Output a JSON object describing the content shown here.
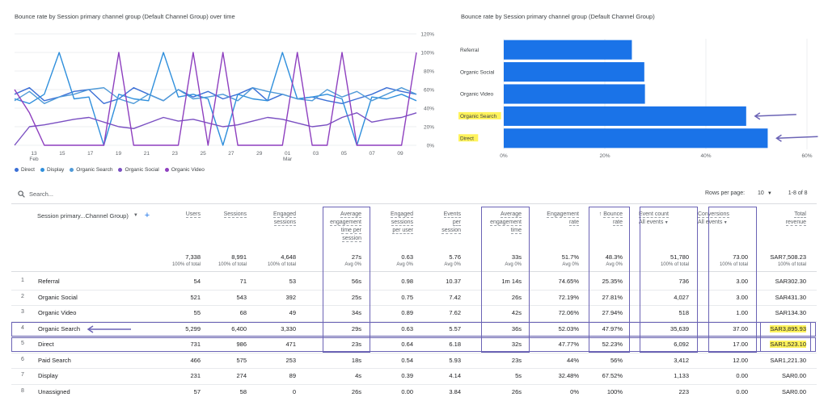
{
  "line_chart": {
    "title": "Bounce rate by Session primary channel group (Default Channel Group) over time",
    "chart_data": {
      "type": "line",
      "y_ticks": [
        "120%",
        "100%",
        "80%",
        "60%",
        "40%",
        "20%",
        "0%"
      ],
      "ylim": [
        0,
        120
      ],
      "x_ticks": [
        "13",
        "15",
        "17",
        "19",
        "21",
        "23",
        "25",
        "27",
        "29",
        "01",
        "03",
        "05",
        "07",
        "09"
      ],
      "x_tick_sub": {
        "13": "Feb",
        "01": "Mar"
      },
      "series": [
        {
          "name": "Direct",
          "color": "#3b6fd6",
          "values": [
            55,
            62,
            48,
            52,
            58,
            60,
            45,
            50,
            62,
            55,
            48,
            60,
            52,
            58,
            50,
            55,
            62,
            48,
            55,
            50,
            52,
            48,
            45,
            50,
            55,
            62,
            58,
            55
          ]
        },
        {
          "name": "Display",
          "color": "#2f8fdc",
          "values": [
            50,
            45,
            55,
            100,
            50,
            52,
            0,
            55,
            50,
            48,
            100,
            52,
            55,
            50,
            0,
            55,
            50,
            48,
            100,
            50,
            52,
            55,
            50,
            0,
            52,
            50,
            55,
            48
          ]
        },
        {
          "name": "Organic Search",
          "color": "#4f9ad8",
          "values": [
            48,
            58,
            45,
            52,
            55,
            60,
            62,
            50,
            45,
            55,
            48,
            60,
            50,
            52,
            55,
            48,
            62,
            58,
            55,
            50,
            48,
            60,
            52,
            58,
            48,
            55,
            62,
            55
          ]
        },
        {
          "name": "Organic Social",
          "color": "#7a4fc2",
          "values": [
            0,
            20,
            22,
            25,
            28,
            30,
            25,
            20,
            18,
            24,
            30,
            26,
            28,
            24,
            20,
            22,
            26,
            30,
            28,
            24,
            20,
            22,
            30,
            35,
            25,
            28,
            30,
            35
          ]
        },
        {
          "name": "Organic Video",
          "color": "#8e3fbf",
          "values": [
            60,
            35,
            0,
            0,
            0,
            0,
            0,
            100,
            0,
            0,
            0,
            0,
            100,
            0,
            100,
            0,
            0,
            0,
            0,
            100,
            0,
            0,
            100,
            0,
            0,
            0,
            0,
            100
          ]
        }
      ]
    },
    "legend": [
      {
        "label": "Direct",
        "color": "#3b6fd6"
      },
      {
        "label": "Display",
        "color": "#2f8fdc"
      },
      {
        "label": "Organic Search",
        "color": "#4f9ad8"
      },
      {
        "label": "Organic Social",
        "color": "#7a4fc2"
      },
      {
        "label": "Organic Video",
        "color": "#8e3fbf"
      }
    ]
  },
  "bar_chart": {
    "title": "Bounce rate by Session primary channel group (Default Channel Group)",
    "chart_data": {
      "type": "bar",
      "orientation": "horizontal",
      "categories": [
        "Referral",
        "Organic Social",
        "Organic Video",
        "Organic Search",
        "Direct"
      ],
      "values": [
        25.35,
        27.81,
        27.94,
        47.97,
        52.23
      ],
      "x_ticks": [
        "0%",
        "20%",
        "40%",
        "60%"
      ],
      "xlim": [
        0,
        60
      ],
      "highlighted": [
        "Organic Search",
        "Direct"
      ],
      "color": "#1a73e8"
    }
  },
  "table": {
    "search_placeholder": "Search...",
    "rows_per_page_label": "Rows per page:",
    "rows_per_page_value": "10",
    "pagination": "1-8 of 8",
    "dimension_header": "Session primary...Channel Group)",
    "columns": [
      {
        "key": "users",
        "lines": [
          "Users"
        ],
        "total": "7,338",
        "sub": "100% of total"
      },
      {
        "key": "sessions",
        "lines": [
          "Sessions"
        ],
        "total": "8,991",
        "sub": "100% of total"
      },
      {
        "key": "engaged",
        "lines": [
          "Engaged",
          "sessions"
        ],
        "total": "4,648",
        "sub": "100% of total"
      },
      {
        "key": "avg_eng_sess",
        "lines": [
          "Average",
          "engagement",
          "time per",
          "session"
        ],
        "total": "27s",
        "sub": "Avg 0%"
      },
      {
        "key": "eng_per_user",
        "lines": [
          "Engaged",
          "sessions",
          "per user"
        ],
        "total": "0.63",
        "sub": "Avg 0%"
      },
      {
        "key": "events_per_sess",
        "lines": [
          "Events",
          "per",
          "session"
        ],
        "total": "5.76",
        "sub": "Avg 0%"
      },
      {
        "key": "avg_eng_time",
        "lines": [
          "Average",
          "engagement",
          "time"
        ],
        "total": "33s",
        "sub": "Avg 0%"
      },
      {
        "key": "eng_rate",
        "lines": [
          "Engagement",
          "rate"
        ],
        "total": "51.7%",
        "sub": "Avg 0%"
      },
      {
        "key": "bounce",
        "lines": [
          "Bounce",
          "rate"
        ],
        "total": "48.3%",
        "sub": "Avg 0%"
      },
      {
        "key": "event_count",
        "lines": [
          "Event count",
          "All events"
        ],
        "total": "51,780",
        "sub": "100% of total"
      },
      {
        "key": "conversions",
        "lines": [
          "Conversions",
          "All events"
        ],
        "total": "73.00",
        "sub": "100% of total"
      },
      {
        "key": "revenue",
        "lines": [
          "Total",
          "revenue"
        ],
        "total": "SAR7,508.23",
        "sub": "100% of total"
      }
    ],
    "rows": [
      {
        "idx": "1",
        "name": "Referral",
        "cells": [
          "54",
          "71",
          "53",
          "56s",
          "0.98",
          "10.37",
          "1m 14s",
          "74.65%",
          "25.35%",
          "736",
          "3.00",
          "SAR302.30"
        ]
      },
      {
        "idx": "2",
        "name": "Organic Social",
        "cells": [
          "521",
          "543",
          "392",
          "25s",
          "0.75",
          "7.42",
          "26s",
          "72.19%",
          "27.81%",
          "4,027",
          "3.00",
          "SAR431.30"
        ]
      },
      {
        "idx": "3",
        "name": "Organic Video",
        "cells": [
          "55",
          "68",
          "49",
          "34s",
          "0.89",
          "7.62",
          "42s",
          "72.06%",
          "27.94%",
          "518",
          "1.00",
          "SAR134.30"
        ]
      },
      {
        "idx": "4",
        "name": "Organic Search",
        "cells": [
          "5,299",
          "6,400",
          "3,330",
          "29s",
          "0.63",
          "5.57",
          "36s",
          "52.03%",
          "47.97%",
          "35,639",
          "37.00",
          "SAR3,895.93"
        ]
      },
      {
        "idx": "5",
        "name": "Direct",
        "cells": [
          "731",
          "986",
          "471",
          "23s",
          "0.64",
          "6.18",
          "32s",
          "47.77%",
          "52.23%",
          "6,092",
          "17.00",
          "SAR1,523.10"
        ]
      },
      {
        "idx": "6",
        "name": "Paid Search",
        "cells": [
          "466",
          "575",
          "253",
          "18s",
          "0.54",
          "5.93",
          "23s",
          "44%",
          "56%",
          "3,412",
          "12.00",
          "SAR1,221.30"
        ]
      },
      {
        "idx": "7",
        "name": "Display",
        "cells": [
          "231",
          "274",
          "89",
          "4s",
          "0.39",
          "4.14",
          "5s",
          "32.48%",
          "67.52%",
          "1,133",
          "0.00",
          "SAR0.00"
        ]
      },
      {
        "idx": "8",
        "name": "Unassigned",
        "cells": [
          "57",
          "58",
          "0",
          "26s",
          "0.00",
          "3.84",
          "26s",
          "0%",
          "100%",
          "223",
          "0.00",
          "SAR0.00"
        ]
      }
    ]
  }
}
